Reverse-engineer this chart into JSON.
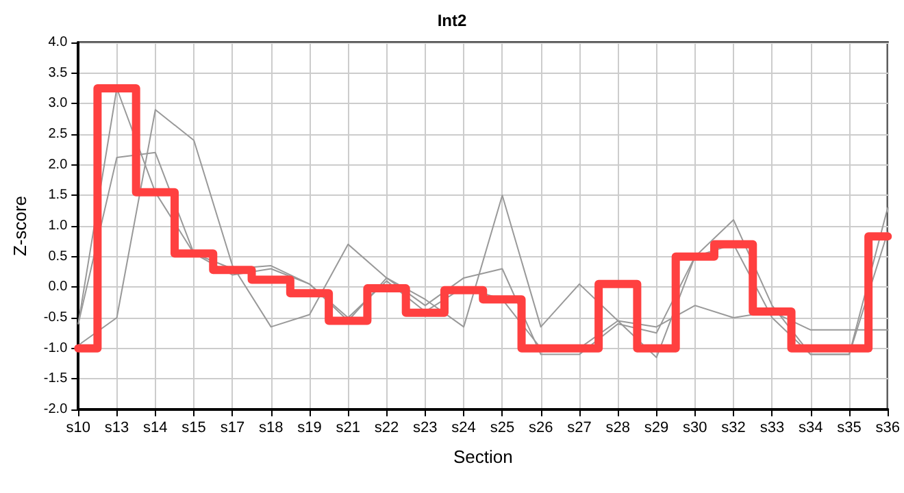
{
  "chart_data": {
    "type": "line",
    "title": "Int2",
    "xlabel": "Section",
    "ylabel": "Z-score",
    "categories": [
      "s10",
      "s13",
      "s14",
      "s15",
      "s17",
      "s18",
      "s19",
      "s21",
      "s22",
      "s23",
      "s24",
      "s25",
      "s26",
      "s27",
      "s28",
      "s29",
      "s30",
      "s32",
      "s33",
      "s34",
      "s35",
      "s36"
    ],
    "series": [
      {
        "color": "#999999",
        "values": [
          -0.6,
          3.25,
          1.55,
          0.55,
          0.2,
          0.3,
          0.05,
          -0.55,
          0.15,
          -0.3,
          0.15,
          0.3,
          -1.1,
          -1.1,
          -0.6,
          -0.75,
          0.5,
          1.1,
          -0.3,
          -1.1,
          -1.1,
          1.3
        ]
      },
      {
        "color": "#999999",
        "values": [
          -0.6,
          2.12,
          2.2,
          0.55,
          0.3,
          0.35,
          0.05,
          -0.5,
          0.1,
          -0.4,
          0.0,
          -0.2,
          -1.0,
          -1.0,
          -0.55,
          -1.15,
          0.5,
          0.7,
          -0.5,
          -1.1,
          -1.1,
          0.9
        ]
      },
      {
        "color": "#999999",
        "values": [
          -0.95,
          -0.5,
          2.9,
          2.4,
          0.35,
          -0.65,
          -0.45,
          0.7,
          0.15,
          -0.2,
          -0.65,
          1.5,
          -0.65,
          0.05,
          -0.55,
          -0.65,
          -0.3,
          -0.5,
          -0.4,
          -0.7,
          -0.7,
          -0.7
        ]
      },
      {
        "type": "step",
        "color": "#ff4040",
        "values": [
          -1.0,
          3.25,
          1.55,
          0.55,
          0.28,
          0.12,
          -0.1,
          -0.55,
          -0.02,
          -0.42,
          -0.05,
          -0.2,
          -1.0,
          -1.0,
          0.05,
          -1.0,
          0.5,
          0.7,
          -0.4,
          -1.0,
          -1.0,
          0.83
        ]
      }
    ],
    "ylim": [
      -2,
      4
    ],
    "yticks": [
      {
        "value": -2,
        "label": "-2.0"
      },
      {
        "value": -1.5,
        "label": "-1.5"
      },
      {
        "value": -1,
        "label": "-1.0"
      },
      {
        "value": -0.5,
        "label": "-0.5"
      },
      {
        "value": 0,
        "label": "0.0"
      },
      {
        "value": 0.5,
        "label": "0.5"
      },
      {
        "value": 1,
        "label": "1.0"
      },
      {
        "value": 1.5,
        "label": "1.5"
      },
      {
        "value": 2,
        "label": "2.0"
      },
      {
        "value": 2.5,
        "label": "2.5"
      },
      {
        "value": 3,
        "label": "3.0"
      },
      {
        "value": 3.5,
        "label": "3.5"
      },
      {
        "value": 4,
        "label": "4.0"
      }
    ],
    "grid": true,
    "marker": "none",
    "line_style": "solid"
  }
}
